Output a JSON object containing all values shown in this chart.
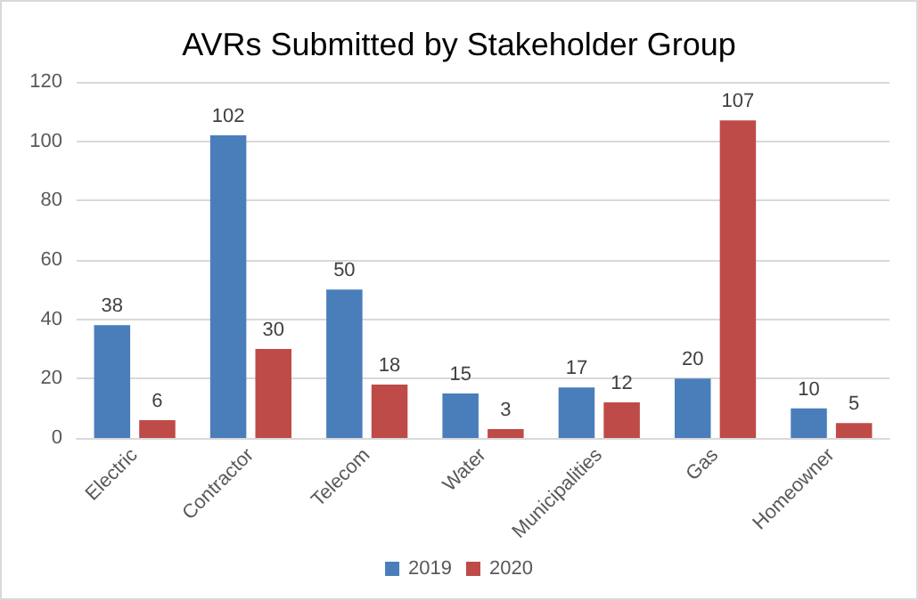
{
  "chart_data": {
    "type": "bar",
    "title": "AVRs Submitted by Stakeholder Group",
    "categories": [
      "Electric",
      "Contractor",
      "Telecom",
      "Water",
      "Municipalities",
      "Gas",
      "Homeowner"
    ],
    "series": [
      {
        "name": "2019",
        "color": "#4a7ebb",
        "values": [
          38,
          102,
          50,
          15,
          17,
          20,
          10
        ]
      },
      {
        "name": "2020",
        "color": "#be4b48",
        "values": [
          6,
          30,
          18,
          3,
          12,
          107,
          5
        ]
      }
    ],
    "ylim": [
      0,
      120
    ],
    "yticks": [
      0,
      20,
      40,
      60,
      80,
      100,
      120
    ],
    "grid": "y",
    "legend": "bottom",
    "data_labels": true
  }
}
